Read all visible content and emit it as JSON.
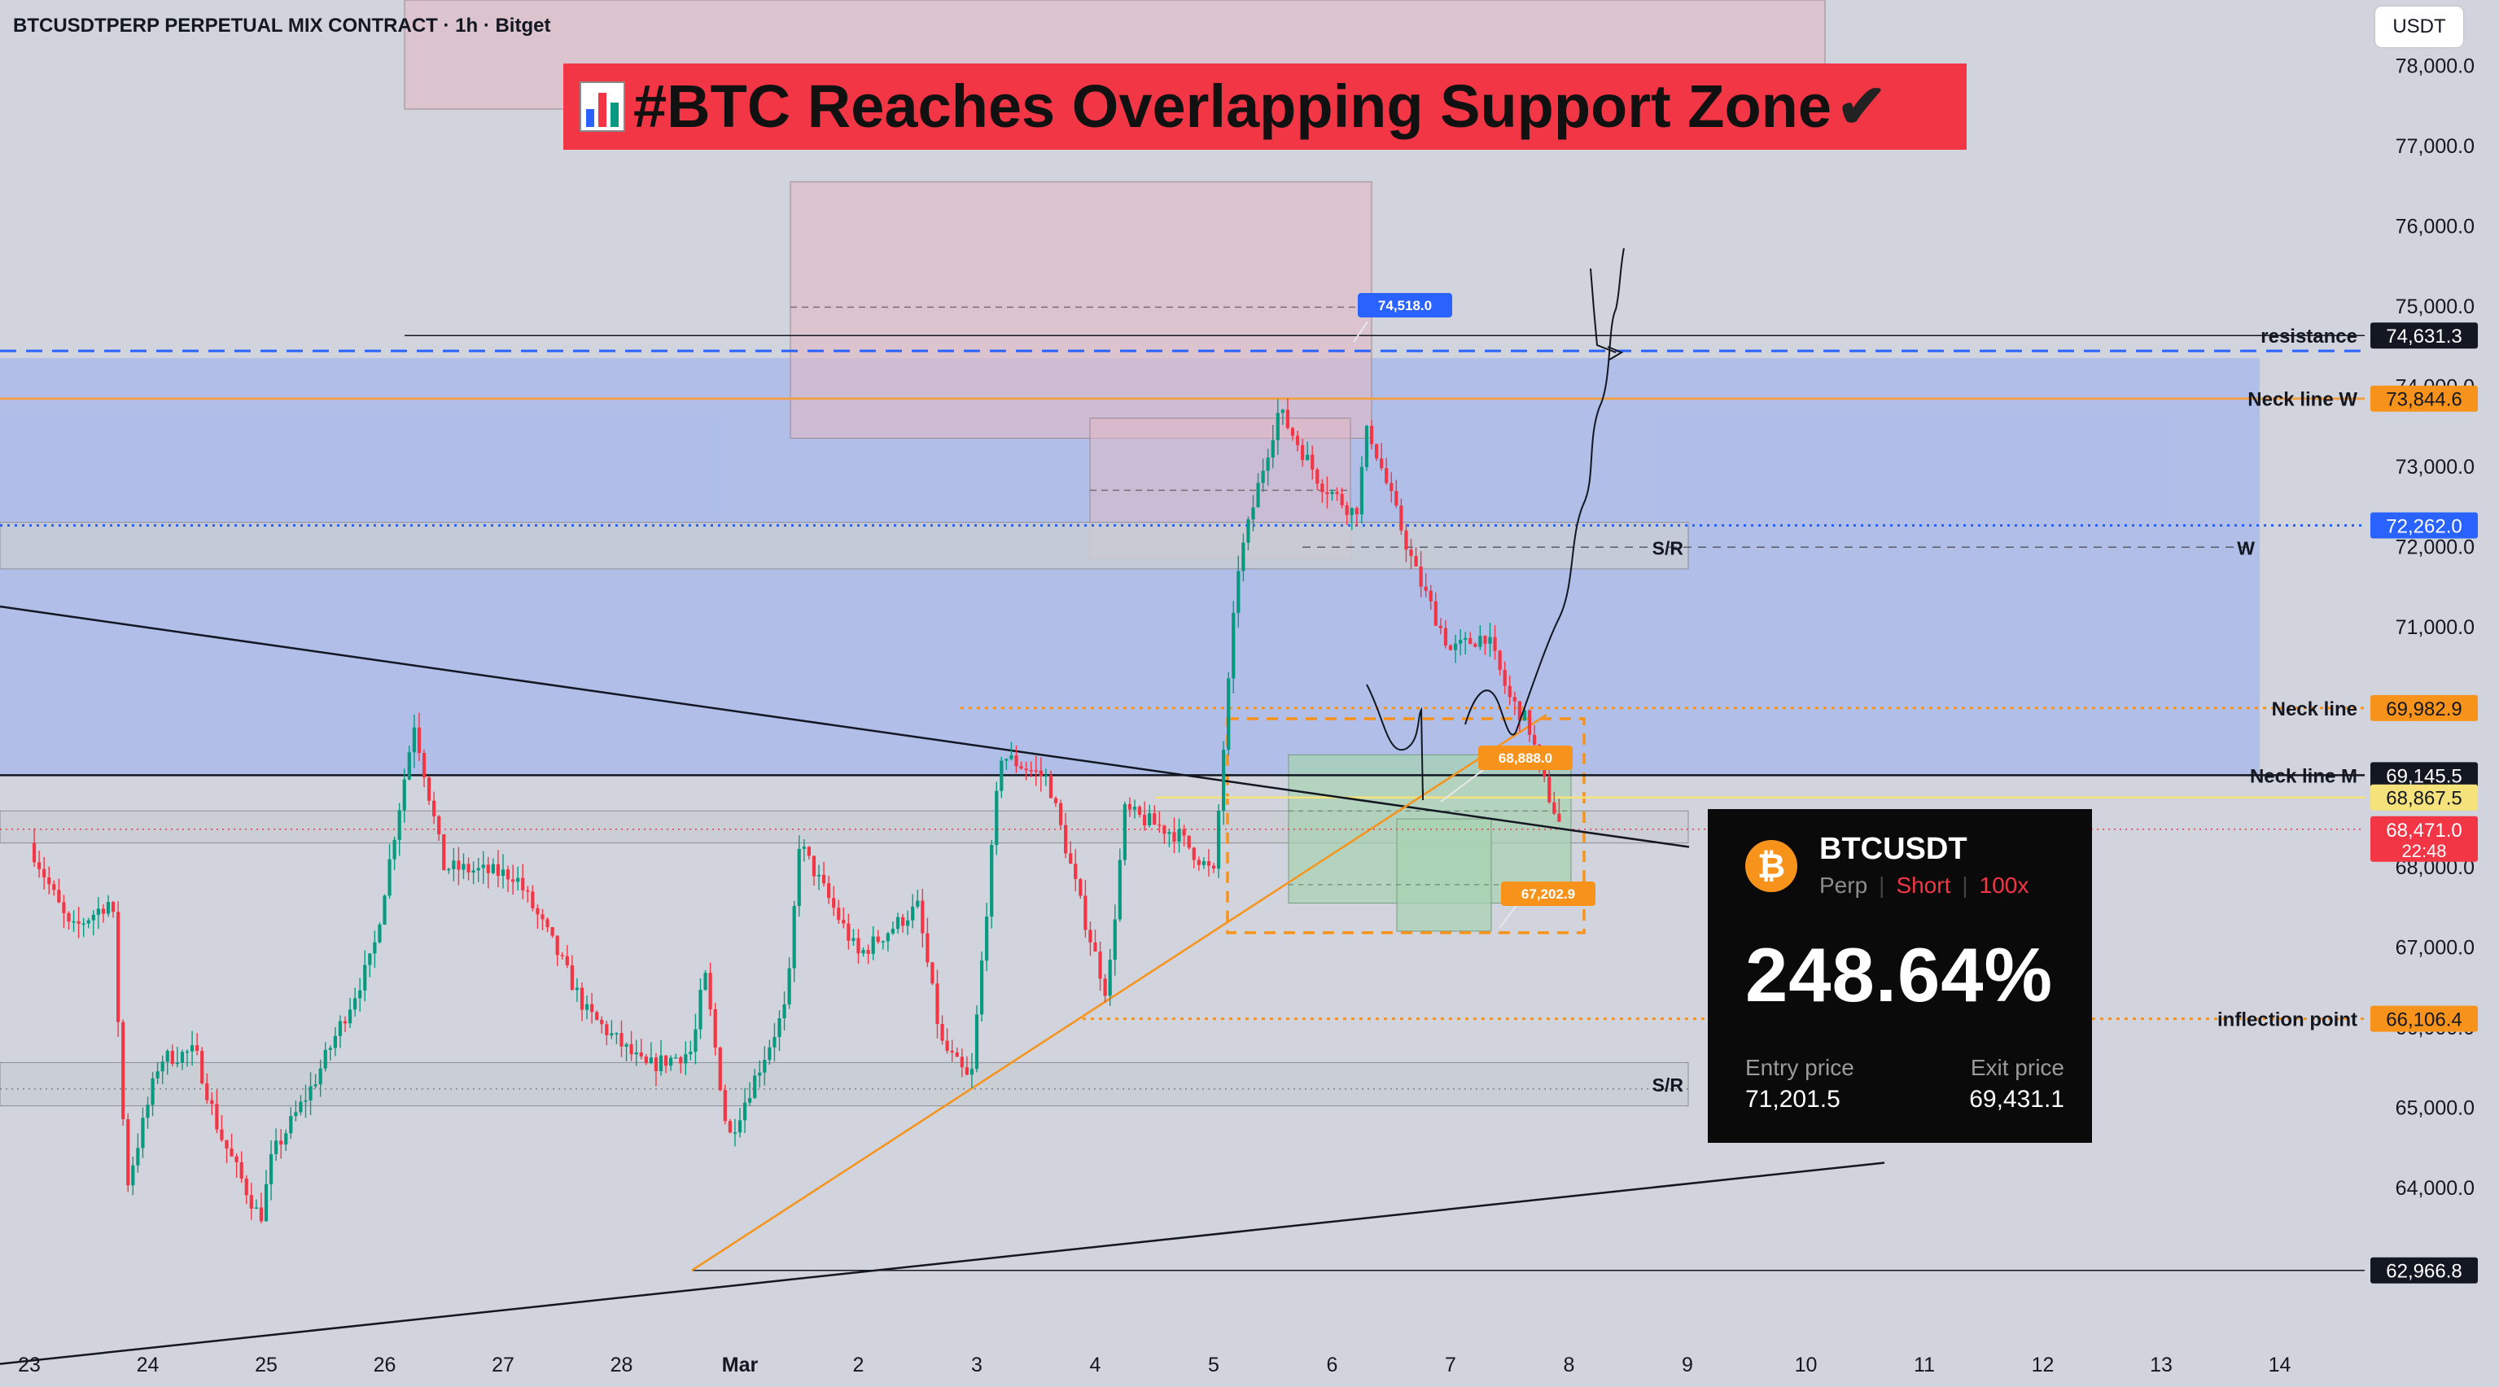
{
  "header": {
    "symbol_line": "BTCUSDTPERP PERPETUAL MIX CONTRACT · 1h · Bitget",
    "currency": "USDT",
    "headline": "#BTC Reaches Overlapping Support Zone",
    "headline_icon": "bar-chart-icon",
    "headline_check": "✔"
  },
  "chart_data": {
    "type": "candlestick",
    "timeframe": "1h",
    "yaxis": {
      "ticks": [
        "78,000.0",
        "77,000.0",
        "76,000.0",
        "75,000.0",
        "74,000.0",
        "73,000.0",
        "72,000.0",
        "71,000.0",
        "70,000.0",
        "69,000.0",
        "68,000.0",
        "67,000.0",
        "66,000.0",
        "65,000.0",
        "64,000.0"
      ],
      "ylim": [
        62000,
        78300
      ],
      "unit": "USDT"
    },
    "xaxis": {
      "ticks": [
        "23",
        "24",
        "25",
        "26",
        "27",
        "28",
        "Mar",
        "2",
        "3",
        "4",
        "5",
        "6",
        "7",
        "8",
        "9",
        "10",
        "11",
        "12",
        "13",
        "14"
      ]
    },
    "ohlc_daily_approx": [
      {
        "day": "23",
        "open": 68300,
        "high": 68400,
        "low": 67000,
        "close": 67300
      },
      {
        "day": "24",
        "open": 67300,
        "high": 66700,
        "low": 64200,
        "close": 64600
      },
      {
        "day": "25",
        "open": 64600,
        "high": 64900,
        "low": 63300,
        "close": 64500
      },
      {
        "day": "26",
        "open": 64500,
        "high": 69900,
        "low": 64100,
        "close": 68300
      },
      {
        "day": "27",
        "open": 68300,
        "high": 68800,
        "low": 66900,
        "close": 67700
      },
      {
        "day": "28",
        "open": 67700,
        "high": 67800,
        "low": 65100,
        "close": 65400
      },
      {
        "day": "Mar",
        "open": 65400,
        "high": 67100,
        "low": 62900,
        "close": 65200
      },
      {
        "day": "2",
        "open": 65200,
        "high": 67000,
        "low": 64900,
        "close": 65300
      },
      {
        "day": "3",
        "open": 65300,
        "high": 69900,
        "low": 65300,
        "close": 68000
      },
      {
        "day": "4",
        "open": 68000,
        "high": 68300,
        "low": 66200,
        "close": 68300
      },
      {
        "day": "5",
        "open": 68300,
        "high": 74000,
        "low": 67600,
        "close": 72900
      },
      {
        "day": "6",
        "open": 72900,
        "high": 73400,
        "low": 70400,
        "close": 70700
      },
      {
        "day": "7",
        "open": 70700,
        "high": 71200,
        "low": 68400,
        "close": 68500
      }
    ],
    "price_labels": [
      {
        "text": "resistance",
        "price_text": "74,631.3",
        "value": 74631.3,
        "style": "solid-black"
      },
      {
        "text": "Neck line W",
        "price_text": "73,844.6",
        "value": 73844.6,
        "style": "solid-orange"
      },
      {
        "text": "",
        "price_text": "72,262.0",
        "value": 72262.0,
        "style": "dotted-blue"
      },
      {
        "text": "Neck line",
        "price_text": "69,982.9",
        "value": 69982.9,
        "style": "dotted-orange"
      },
      {
        "text": "Neck line M",
        "price_text": "69,145.5",
        "value": 69145.5,
        "style": "solid-black"
      },
      {
        "text": "",
        "price_text": "68,867.5",
        "value": 68867.5,
        "style": "solid-yellow"
      },
      {
        "text": "",
        "price_text": "68,471.0",
        "value": 68471.0,
        "style": "current-price",
        "sub": "22:48"
      },
      {
        "text": "inflection point",
        "price_text": "66,106.4",
        "value": 66106.4,
        "style": "dotted-orange"
      },
      {
        "text": "",
        "price_text": "62,966.8",
        "value": 62966.8,
        "style": "solid-black"
      }
    ],
    "annotations": [
      {
        "text": "S/R",
        "value": 72000
      },
      {
        "text": "W",
        "value": 72000
      },
      {
        "text": "S/R",
        "value": 65300
      },
      {
        "text": "74,518.0",
        "value": 74518.0,
        "color": "#2962ff"
      },
      {
        "text": "68,888.0",
        "value": 68888.0,
        "color": "#f7931a"
      },
      {
        "text": "67,202.9",
        "value": 67202.9,
        "color": "#f7931a"
      }
    ],
    "colors": {
      "bull": "#089981",
      "bear": "#f23645",
      "zone_blue": "#a4b7ec",
      "zone_pink": "#e2b9c6",
      "zone_green": "#a7d3b0",
      "orange": "#f7931a",
      "blue_line": "#2962ff"
    }
  },
  "trade_card": {
    "symbol": "BTCUSDT",
    "type": "Perp",
    "side": "Short",
    "leverage": "100x",
    "pnl": "248.64%",
    "entry_label": "Entry price",
    "entry_value": "71,201.5",
    "exit_label": "Exit price",
    "exit_value": "69,431.1",
    "coin_icon": "bitcoin-icon",
    "coin_glyph": "₿"
  }
}
